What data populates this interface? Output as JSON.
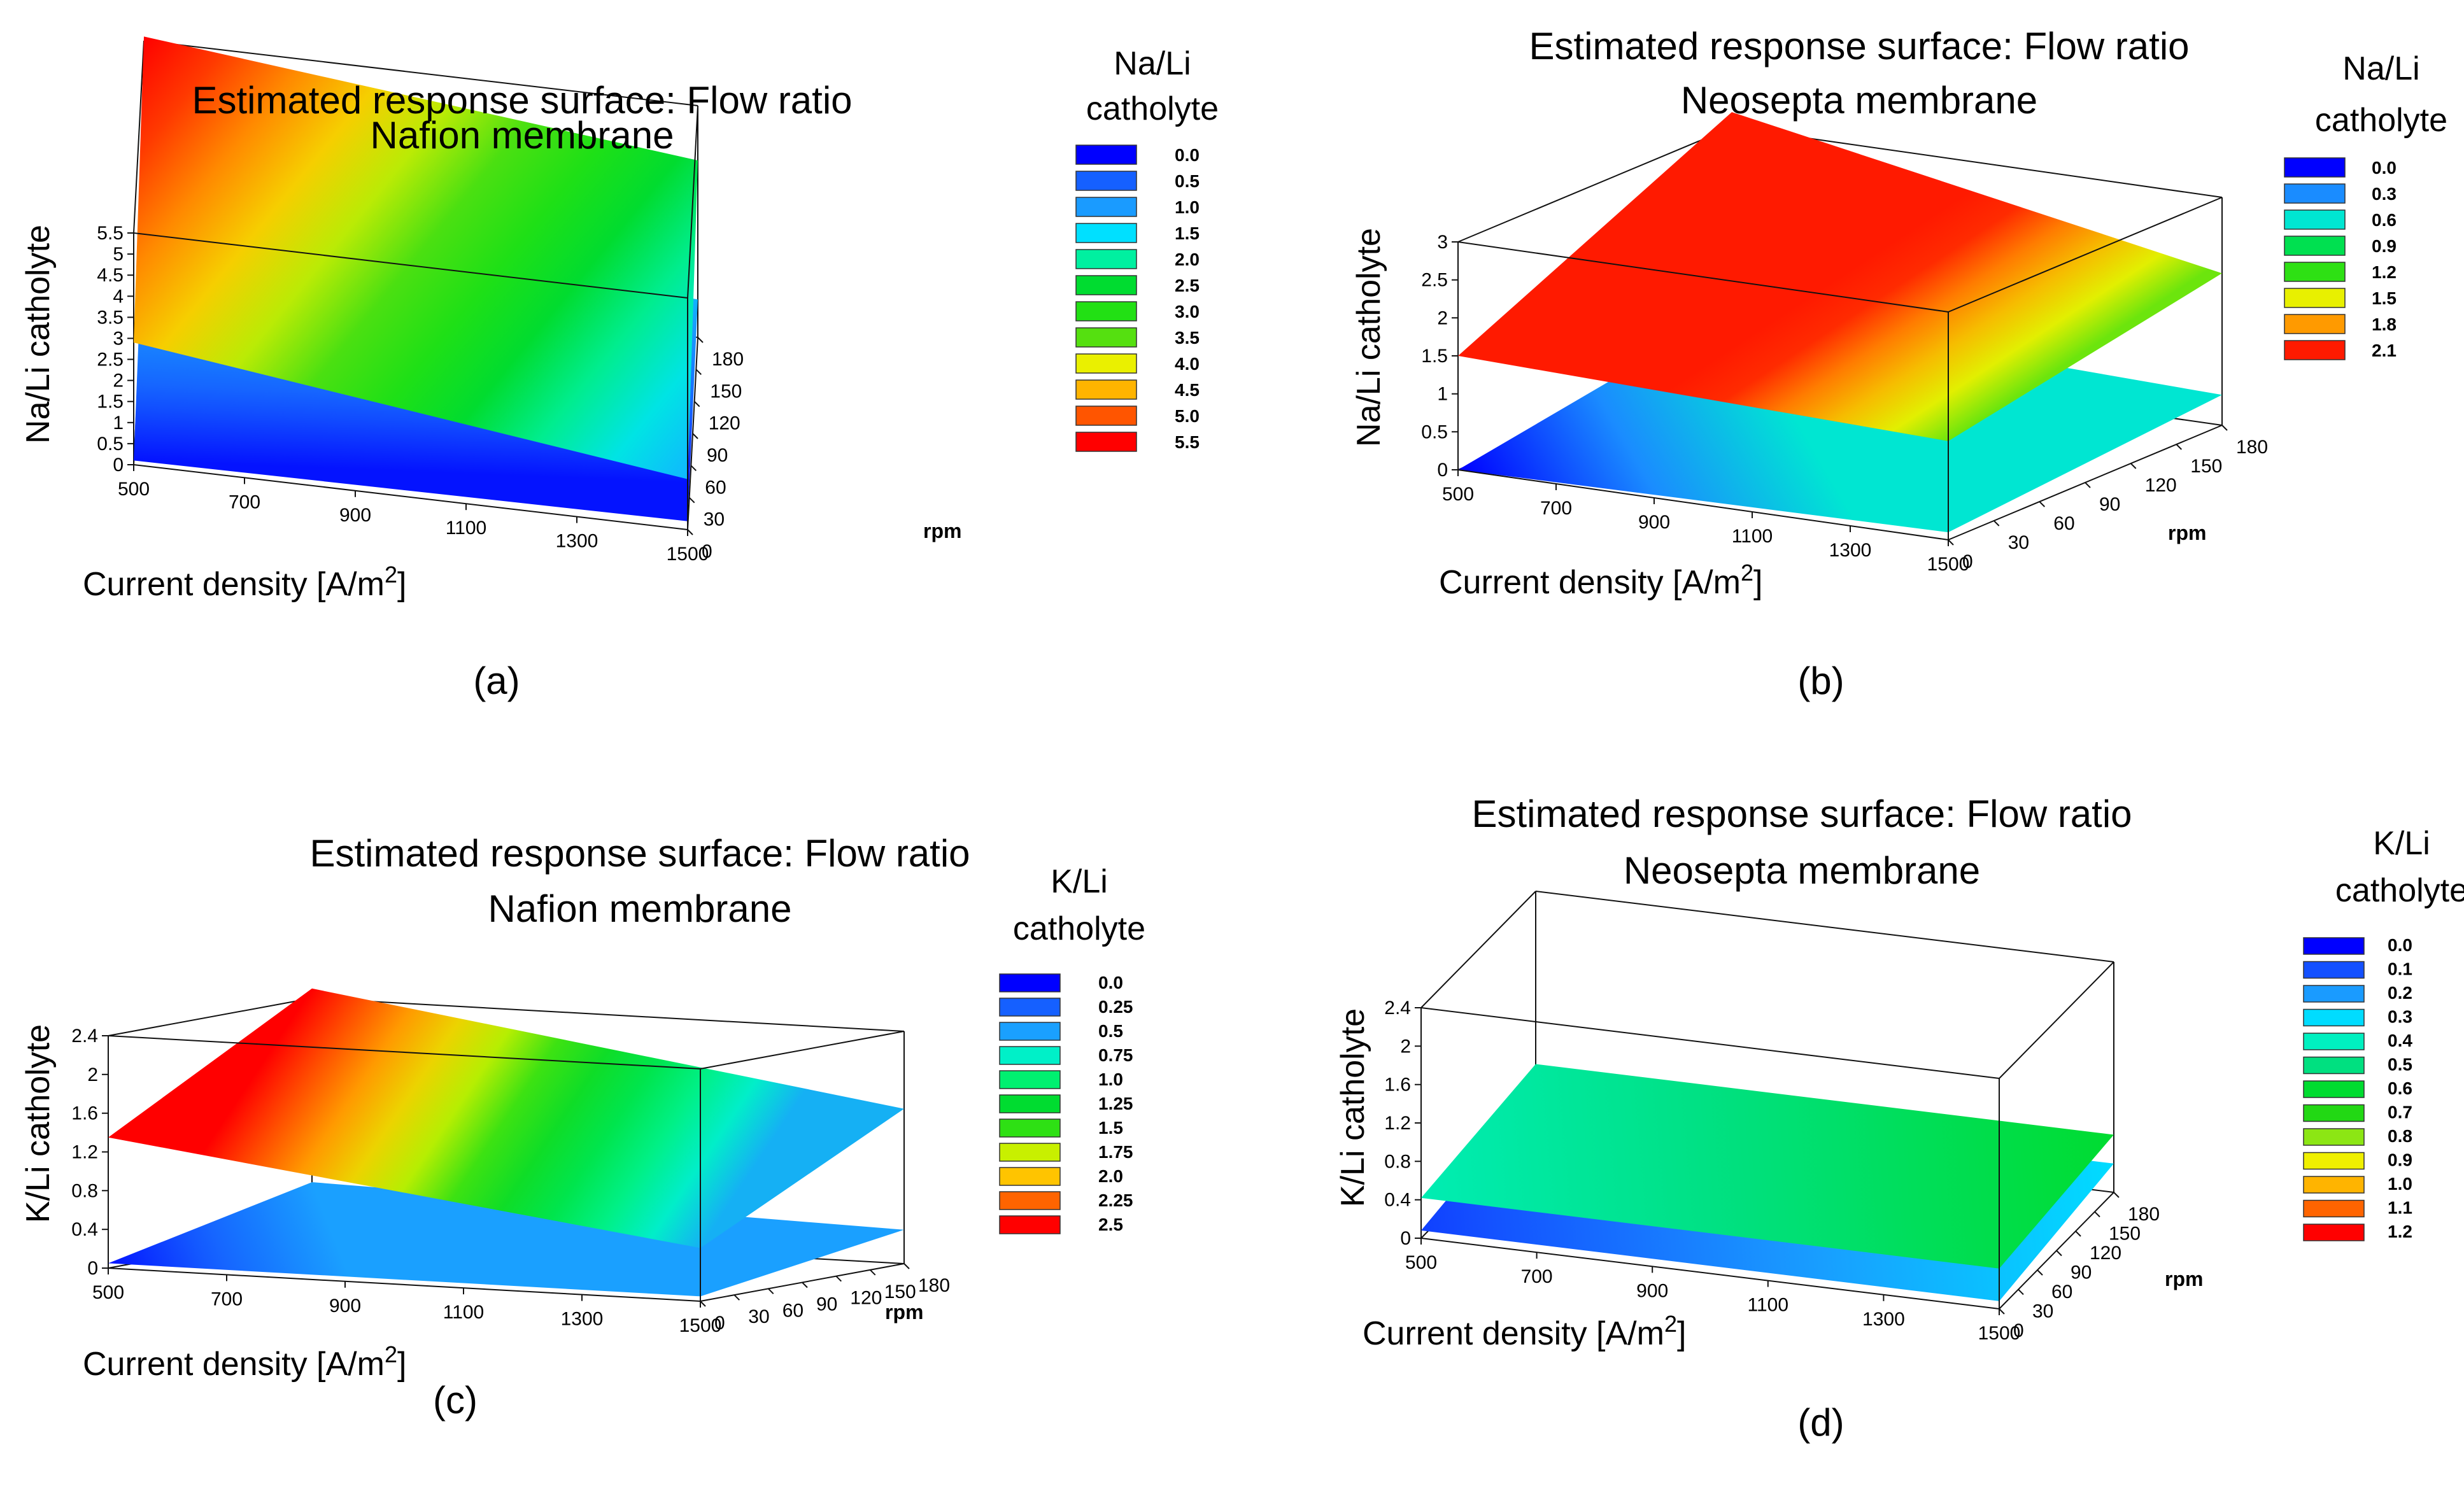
{
  "chart_data": [
    {
      "type": "surface",
      "panel_label": "(a)",
      "title": "Estimated response surface: Flow ratio",
      "subtitle": "Nafion membrane",
      "xlabel": "Current density [A/m",
      "xlabel_sup": "2",
      "xlabel_end": "]",
      "ylabel": "rpm",
      "zlabel": "Na/Li catholyte",
      "xticks": [
        "500",
        "700",
        "900",
        "1100",
        "1300",
        "1500"
      ],
      "yticks": [
        "0",
        "30",
        "60",
        "90",
        "120",
        "150",
        "180"
      ],
      "zticks": [
        "0",
        "0.5",
        "1",
        "1.5",
        "2",
        "2.5",
        "3",
        "3.5",
        "4",
        "4.5",
        "5",
        "5.5"
      ],
      "xlim": [
        500,
        1500
      ],
      "ylim": [
        0,
        180
      ],
      "zlim": [
        0,
        5.5
      ],
      "legend": {
        "title_lines": [
          "Na/Li",
          "catholyte"
        ],
        "levels": [
          "0.0",
          "0.5",
          "1.0",
          "1.5",
          "2.0",
          "2.5",
          "3.0",
          "3.5",
          "4.0",
          "4.5",
          "5.0",
          "5.5"
        ],
        "colors": [
          "#0000ff",
          "#1560ff",
          "#1a9bff",
          "#00e0ff",
          "#00f0a0",
          "#00dc30",
          "#22e014",
          "#55e010",
          "#eaf000",
          "#ffb400",
          "#ff5500",
          "#ff0000"
        ]
      },
      "surfaces": [
        {
          "corner_values": {
            "x500_y0": 0.1,
            "x1500_y0": 0.2,
            "x1500_y180": 0.9,
            "x500_y180": 1.6
          }
        },
        {
          "corner_values": {
            "x500_y0": 2.9,
            "x1500_y0": 1.2,
            "x1500_y180": 4.2,
            "x500_y180": 5.6
          }
        }
      ]
    },
    {
      "type": "surface",
      "panel_label": "(b)",
      "title": "Estimated response surface: Flow ratio",
      "subtitle": "Neosepta membrane",
      "xlabel": "Current density [A/m",
      "xlabel_sup": "2",
      "xlabel_end": "]",
      "ylabel": "rpm",
      "zlabel": "Na/Li catholyte",
      "xticks": [
        "500",
        "700",
        "900",
        "1100",
        "1300",
        "1500"
      ],
      "yticks": [
        "0",
        "30",
        "60",
        "90",
        "120",
        "150",
        "180"
      ],
      "zticks": [
        "0",
        "0.5",
        "1",
        "1.5",
        "2",
        "2.5",
        "3"
      ],
      "xlim": [
        500,
        1500
      ],
      "ylim": [
        0,
        180
      ],
      "zlim": [
        0,
        3
      ],
      "legend": {
        "title_lines": [
          "Na/Li",
          "catholyte"
        ],
        "levels": [
          "0.0",
          "0.3",
          "0.6",
          "0.9",
          "1.2",
          "1.5",
          "1.8",
          "2.1"
        ],
        "colors": [
          "#0000ff",
          "#1a8cff",
          "#00e6d2",
          "#00e050",
          "#2ee014",
          "#e8f000",
          "#ff9a00",
          "#ff1a00"
        ]
      },
      "surfaces": [
        {
          "corner_values": {
            "x500_y0": 0.0,
            "x1500_y0": 0.1,
            "x1500_y180": 0.4,
            "x500_y180": 0.6
          }
        },
        {
          "corner_values": {
            "x500_y0": 1.5,
            "x1500_y0": 1.3,
            "x1500_y180": 2.0,
            "x500_y180": 3.2
          }
        }
      ]
    },
    {
      "type": "surface",
      "panel_label": "(c)",
      "title": "Estimated response surface: Flow ratio",
      "subtitle": "Nafion membrane",
      "xlabel": "Current density [A/m",
      "xlabel_sup": "2",
      "xlabel_end": "]",
      "ylabel": "rpm",
      "zlabel": "K/Li catholyte",
      "xticks": [
        "500",
        "700",
        "900",
        "1100",
        "1300",
        "1500"
      ],
      "yticks": [
        "0",
        "30",
        "60",
        "90",
        "120",
        "150",
        "180"
      ],
      "zticks": [
        "0",
        "0.4",
        "0.8",
        "1.2",
        "1.6",
        "2",
        "2.4"
      ],
      "xlim": [
        500,
        1500
      ],
      "ylim": [
        0,
        180
      ],
      "zlim": [
        0,
        2.4
      ],
      "legend": {
        "title_lines": [
          "K/Li",
          "catholyte"
        ],
        "levels": [
          "0.0",
          "0.25",
          "0.5",
          "0.75",
          "1.0",
          "1.25",
          "1.5",
          "1.75",
          "2.0",
          "2.25",
          "2.5"
        ],
        "colors": [
          "#0000ff",
          "#1560ff",
          "#1aa0ff",
          "#00f0c8",
          "#00f070",
          "#00dc30",
          "#2ee014",
          "#c8f000",
          "#ffc400",
          "#ff6400",
          "#ff0000"
        ]
      },
      "surfaces": [
        {
          "corner_values": {
            "x500_y0": 0.05,
            "x1500_y0": 0.05,
            "x1500_y180": 0.35,
            "x500_y180": 0.5
          }
        },
        {
          "corner_values": {
            "x500_y0": 1.35,
            "x1500_y0": 0.55,
            "x1500_y180": 1.6,
            "x500_y180": 2.5
          }
        }
      ]
    },
    {
      "type": "surface",
      "panel_label": "(d)",
      "title": "Estimated response surface: Flow ratio",
      "subtitle": "Neosepta membrane",
      "xlabel": "Current density [A/m",
      "xlabel_sup": "2",
      "xlabel_end": "]",
      "ylabel": "rpm",
      "zlabel": "K/Li catholyte",
      "xticks": [
        "500",
        "700",
        "900",
        "1100",
        "1300",
        "1500"
      ],
      "yticks": [
        "0",
        "30",
        "60",
        "90",
        "120",
        "150",
        "180"
      ],
      "zticks": [
        "0",
        "0.4",
        "0.8",
        "1.2",
        "1.6",
        "2",
        "2.4"
      ],
      "xlim": [
        500,
        1500
      ],
      "ylim": [
        0,
        180
      ],
      "zlim": [
        0,
        2.4
      ],
      "legend": {
        "title_lines": [
          "K/Li",
          "catholyte"
        ],
        "levels": [
          "0.0",
          "0.1",
          "0.2",
          "0.3",
          "0.4",
          "0.5",
          "0.6",
          "0.7",
          "0.8",
          "0.9",
          "1.0",
          "1.1",
          "1.2"
        ],
        "colors": [
          "#0000ff",
          "#1450ff",
          "#1a9bff",
          "#00dcff",
          "#00f0c0",
          "#00e080",
          "#00dc30",
          "#22d814",
          "#8ce614",
          "#f0f000",
          "#ffb400",
          "#ff6400",
          "#ff0000"
        ]
      },
      "surfaces": [
        {
          "corner_values": {
            "x500_y0": 0.08,
            "x1500_y0": 0.08,
            "x1500_y180": 0.3,
            "x500_y180": 0.3
          }
        },
        {
          "corner_values": {
            "x500_y0": 0.42,
            "x1500_y0": 0.42,
            "x1500_y180": 0.6,
            "x500_y180": 0.6
          }
        }
      ]
    }
  ]
}
